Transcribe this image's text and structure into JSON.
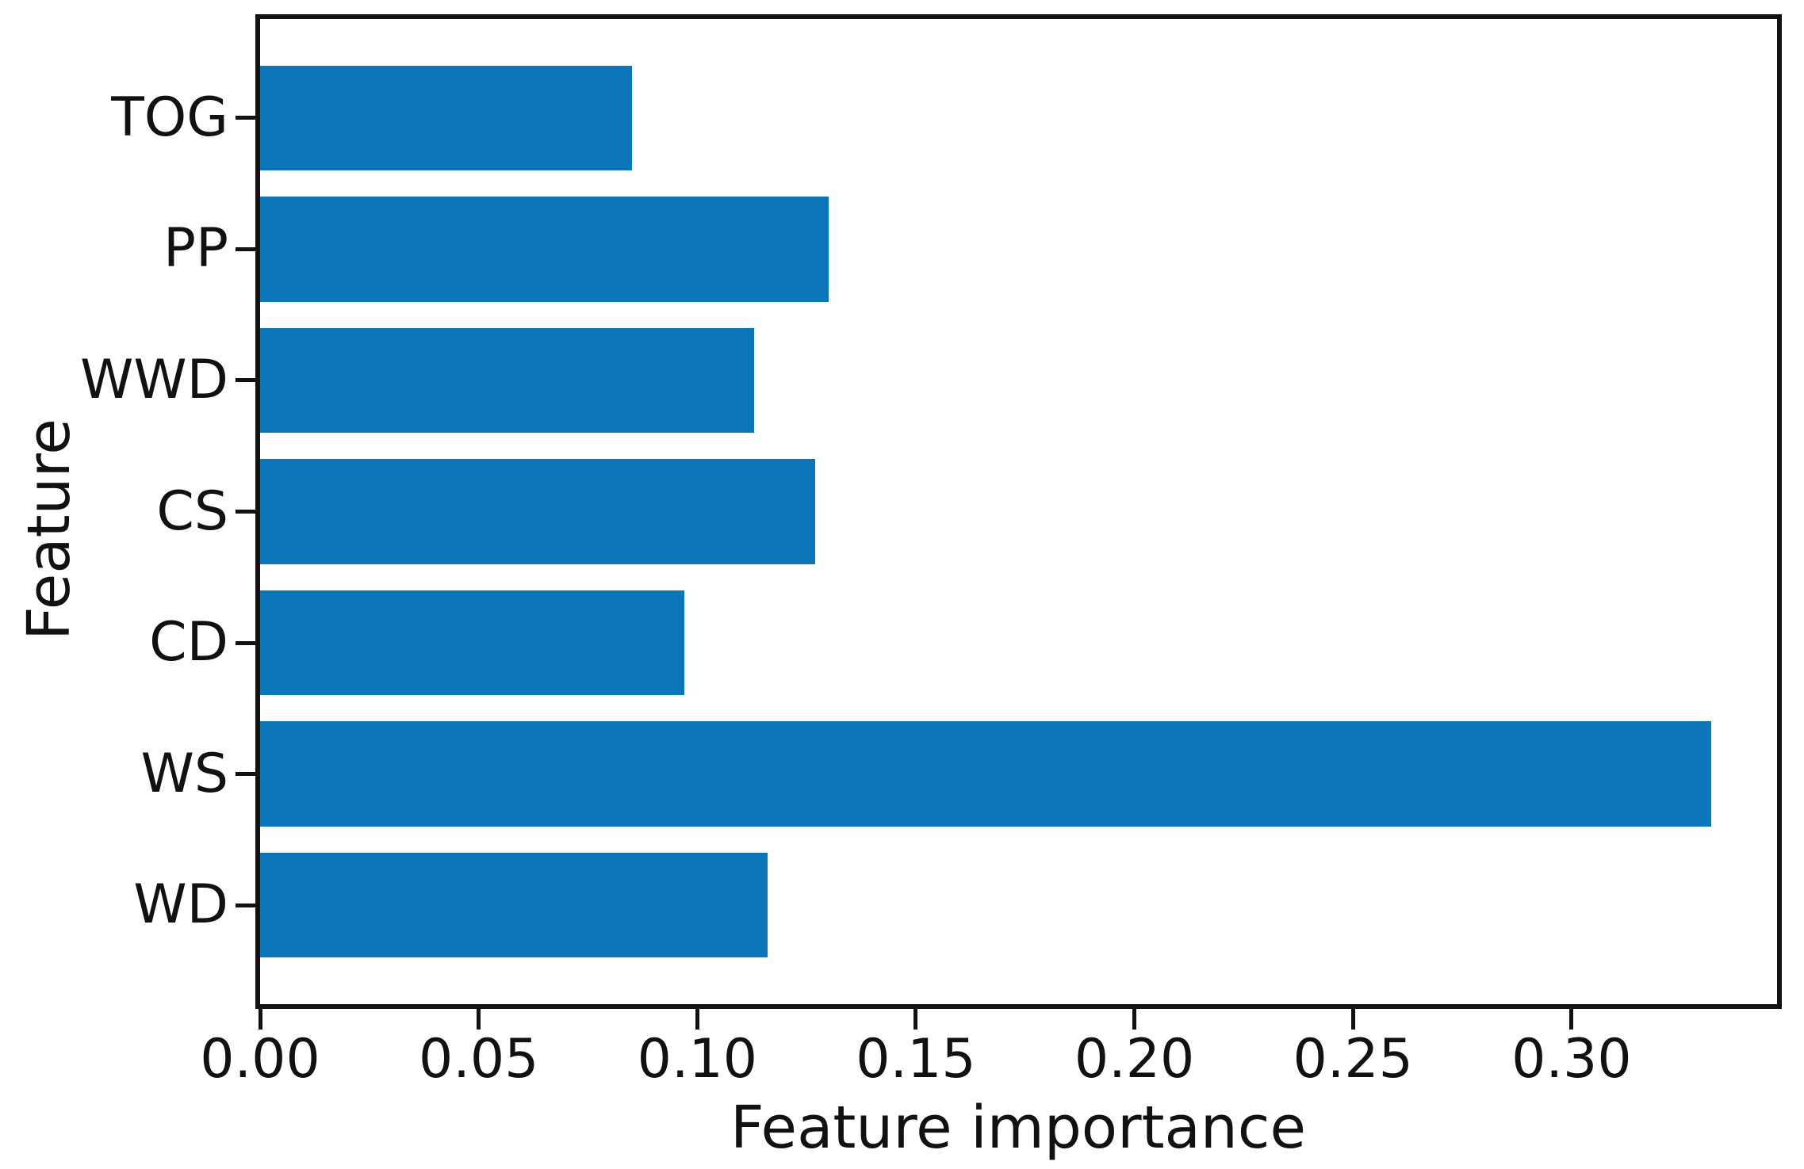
{
  "figure": {
    "background": "#ffffff",
    "bar_color": "#0d76b8",
    "axis_color": "#111111",
    "text_color": "#111111"
  },
  "chart_data": {
    "type": "bar",
    "orientation": "horizontal",
    "title": "",
    "xlabel": "Feature importance",
    "ylabel": "Feature",
    "categories": [
      "TOG",
      "PP",
      "WWD",
      "CS",
      "CD",
      "WS",
      "WD"
    ],
    "values": [
      0.085,
      0.13,
      0.113,
      0.127,
      0.097,
      0.332,
      0.116
    ],
    "xlim": [
      0,
      0.347
    ],
    "xticks": [
      0.0,
      0.05,
      0.1,
      0.15,
      0.2,
      0.25,
      0.3
    ],
    "xtick_labels": [
      "0.00",
      "0.05",
      "0.10",
      "0.15",
      "0.20",
      "0.25",
      "0.30"
    ],
    "bar_height_fraction": 0.8,
    "grid": false,
    "legend": null
  }
}
